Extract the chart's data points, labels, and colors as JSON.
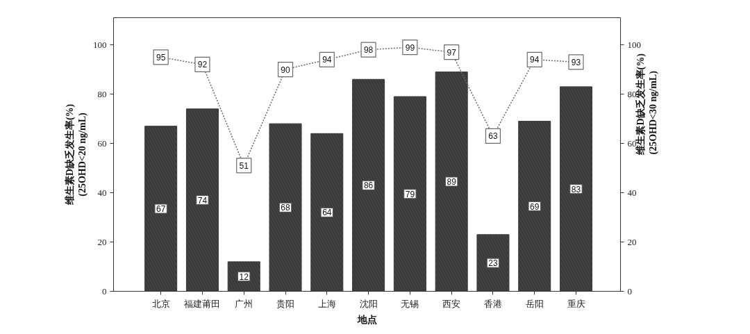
{
  "chart_data": {
    "type": "bar",
    "xlabel": "地点",
    "ylabel": "维生素D缺乏发生率(%)\n(25OHD<20 ng/mL)",
    "y2label": "维生素D缺乏发生率(%)\n(25OHD<30 ng/mL)",
    "categories": [
      "北京",
      "福建莆田",
      "广州",
      "贵阳",
      "上海",
      "沈阳",
      "无锡",
      "西安",
      "香港",
      "岳阳",
      "重庆"
    ],
    "ylim": [
      0,
      111
    ],
    "yticks": [
      0,
      20,
      40,
      60,
      80,
      100
    ],
    "y2lim": [
      0,
      111
    ],
    "y2ticks": [
      0,
      20,
      40,
      60,
      80,
      100
    ],
    "series": [
      {
        "color": "#3a3a3a",
        "values": [
          67,
          74,
          12,
          68,
          64,
          86,
          79,
          89,
          23,
          69,
          83
        ]
      },
      {
        "type": "line",
        "axis": "y2",
        "color": "#6a6a6a",
        "marker": "square",
        "line_style": "dotted",
        "values": [
          95,
          92,
          51,
          90,
          94,
          98,
          99,
          97,
          63,
          94,
          93
        ]
      }
    ],
    "data_labels": true,
    "grid": false
  }
}
